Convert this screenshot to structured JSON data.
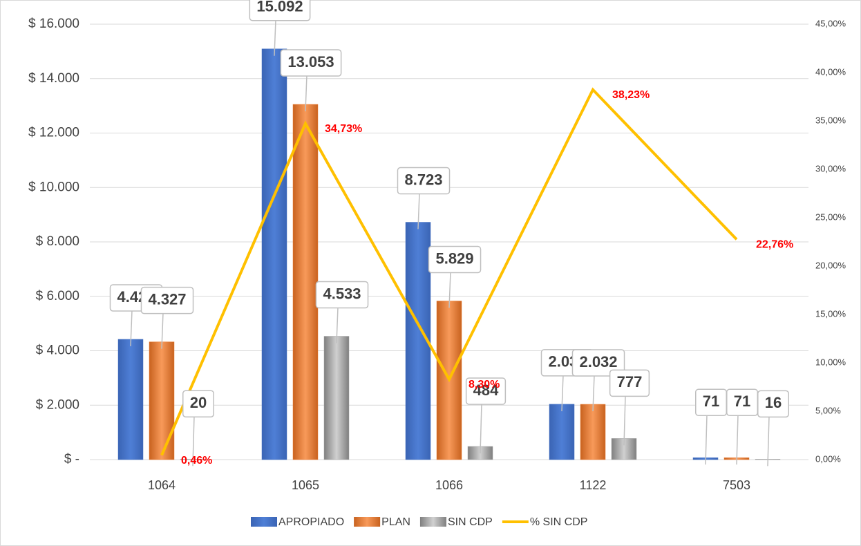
{
  "chart_data": {
    "type": "bar",
    "categories": [
      "1064",
      "1065",
      "1066",
      "1122",
      "7503"
    ],
    "series": [
      {
        "name": "APROPIADO",
        "color": "#4472c4",
        "values": [
          4420,
          15092,
          8723,
          2035,
          71
        ],
        "value_labels": [
          "4.420",
          "15.092",
          "8.723",
          "2.035",
          "71"
        ]
      },
      {
        "name": "PLAN",
        "color": "#ed7d31",
        "values": [
          4327,
          13053,
          5829,
          2032,
          71
        ],
        "value_labels": [
          "4.327",
          "13.053",
          "5.829",
          "2.032",
          "71"
        ]
      },
      {
        "name": "SIN CDP",
        "color": "#a5a5a5",
        "values": [
          20,
          4533,
          484,
          777,
          16
        ],
        "value_labels": [
          "20",
          "4.533",
          "484",
          "777",
          "16"
        ]
      },
      {
        "name": "% SIN CDP",
        "type": "line",
        "axis": "y2",
        "color": "#ffc000",
        "values": [
          0.46,
          34.73,
          8.3,
          38.23,
          22.76
        ],
        "value_labels": [
          "0,46%",
          "34,73%",
          "8,30%",
          "38,23%",
          "22,76%"
        ]
      }
    ],
    "ylim": [
      0,
      16000
    ],
    "yticks": [
      {
        "value": 0,
        "label": "$ -"
      },
      {
        "value": 2000,
        "label": "$ 2.000"
      },
      {
        "value": 4000,
        "label": "$ 4.000"
      },
      {
        "value": 6000,
        "label": "$ 6.000"
      },
      {
        "value": 8000,
        "label": "$ 8.000"
      },
      {
        "value": 10000,
        "label": "$ 10.000"
      },
      {
        "value": 12000,
        "label": "$ 12.000"
      },
      {
        "value": 14000,
        "label": "$ 14.000"
      },
      {
        "value": 16000,
        "label": "$ 16.000"
      }
    ],
    "y2lim": [
      0,
      45
    ],
    "y2ticks": [
      {
        "value": 0,
        "label": "0,00%"
      },
      {
        "value": 5,
        "label": "5,00%"
      },
      {
        "value": 10,
        "label": "10,00%"
      },
      {
        "value": 15,
        "label": "15,00%"
      },
      {
        "value": 20,
        "label": "20,00%"
      },
      {
        "value": 25,
        "label": "25,00%"
      },
      {
        "value": 30,
        "label": "30,00%"
      },
      {
        "value": 35,
        "label": "35,00%"
      },
      {
        "value": 40,
        "label": "40,00%"
      },
      {
        "value": 45,
        "label": "45,00%"
      }
    ],
    "grid": true,
    "legend": "bottom"
  }
}
